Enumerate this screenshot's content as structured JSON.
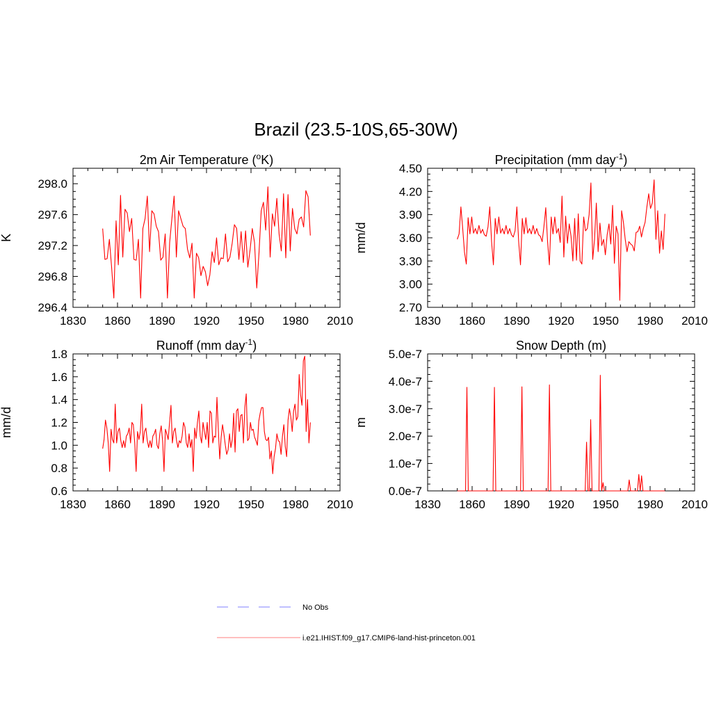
{
  "page_title": "Brazil (23.5-10S,65-30W)",
  "colors": {
    "model": "#ff0000",
    "obs": "#9999ff",
    "axis": "#000000"
  },
  "legend": [
    {
      "label": "No Obs",
      "style": "dashed",
      "color": "#9999ff"
    },
    {
      "label": "i.e21.IHIST.f09_g17.CMIP6-land-hist-princeton.001",
      "style": "solid",
      "color": "#ff9999"
    }
  ],
  "chart_data": [
    {
      "type": "line",
      "title": "2m Air Temperature (",
      "title_sup": "o",
      "title_after": "K)",
      "ylabel": "K",
      "xlim": [
        1830,
        2010
      ],
      "ylim": [
        296.4,
        298.2
      ],
      "x_ticks": [
        1830,
        1860,
        1890,
        1920,
        1950,
        1980,
        2010
      ],
      "y_ticks": [
        296.4,
        296.8,
        297.2,
        297.6,
        298.0
      ],
      "y_tick_labels": [
        "296.4",
        "296.8",
        "297.2",
        "297.6",
        "298.0"
      ],
      "x_start": 1850,
      "series": [
        {
          "values": [
            297.42,
            297.02,
            297.03,
            297.28,
            296.92,
            296.52,
            297.52,
            296.95,
            297.85,
            297.05,
            297.67,
            297.62,
            297.38,
            297.55,
            297.02,
            297.01,
            297.28,
            296.52,
            297.42,
            297.55,
            297.84,
            297.12,
            297.65,
            297.61,
            297.45,
            297.38,
            297.01,
            297.05,
            297.35,
            296.52,
            297.24,
            297.55,
            297.84,
            297.05,
            297.65,
            297.55,
            297.45,
            297.42,
            297.15,
            297.04,
            297.23,
            296.52,
            297.1,
            297.04,
            296.81,
            296.93,
            296.86,
            296.68,
            296.82,
            297.12,
            296.98,
            297.3,
            296.95,
            297.04,
            297.03,
            297.35,
            296.99,
            297.05,
            297.23,
            297.47,
            297.42,
            297.02,
            297.38,
            296.98,
            297.39,
            296.92,
            297.14,
            297.42,
            297.24,
            296.65,
            297.1,
            297.65,
            297.76,
            297.4,
            297.96,
            297.05,
            297.61,
            297.45,
            297.81,
            297.35,
            297.13,
            297.87,
            297.04,
            297.86,
            297.13,
            297.68,
            297.42,
            297.35,
            297.54,
            297.57,
            297.44,
            297.91,
            297.83,
            297.33
          ]
        }
      ]
    },
    {
      "type": "line",
      "title": "Precipitation (mm day",
      "title_sup": "-1",
      "title_after": ")",
      "ylabel": "mm/d",
      "xlim": [
        1830,
        2010
      ],
      "ylim": [
        2.7,
        4.5
      ],
      "x_ticks": [
        1830,
        1860,
        1890,
        1920,
        1950,
        1980,
        2010
      ],
      "y_ticks": [
        2.7,
        3.0,
        3.3,
        3.6,
        3.9,
        4.2,
        4.5
      ],
      "y_tick_labels": [
        "2.70",
        "3.00",
        "3.30",
        "3.60",
        "3.90",
        "4.20",
        "4.50"
      ],
      "x_start": 1850,
      "series": [
        {
          "values": [
            3.58,
            3.65,
            4.0,
            3.72,
            3.41,
            3.26,
            3.86,
            3.65,
            3.87,
            3.66,
            3.72,
            3.65,
            3.76,
            3.66,
            3.71,
            3.64,
            3.62,
            3.74,
            4.0,
            3.55,
            3.25,
            3.85,
            3.65,
            3.87,
            3.66,
            3.72,
            3.65,
            3.76,
            3.65,
            3.72,
            3.64,
            3.61,
            3.69,
            4.0,
            3.55,
            3.25,
            3.85,
            3.65,
            3.86,
            3.66,
            3.72,
            3.65,
            3.76,
            3.65,
            3.72,
            3.64,
            3.62,
            3.55,
            3.75,
            3.99,
            3.55,
            3.25,
            3.87,
            3.65,
            3.87,
            3.66,
            3.72,
            3.54,
            4.14,
            3.35,
            3.88,
            3.53,
            3.78,
            3.62,
            3.3,
            3.85,
            3.31,
            3.91,
            3.3,
            3.26,
            3.87,
            3.69,
            3.72,
            3.9,
            4.31,
            3.32,
            3.58,
            4.05,
            3.42,
            3.79,
            3.5,
            3.58,
            3.38,
            3.64,
            3.78,
            3.52,
            4.02,
            3.27,
            3.75,
            3.65,
            2.79,
            3.95,
            3.8,
            3.58,
            3.42,
            3.55,
            3.52,
            3.5,
            3.43,
            3.67,
            3.68,
            3.75,
            3.61,
            3.72,
            3.8,
            4.0,
            4.17,
            3.98,
            4.05,
            4.35,
            3.58,
            3.95,
            3.4,
            3.69,
            3.45,
            3.91
          ]
        }
      ]
    },
    {
      "type": "line",
      "title": "Runoff (mm day",
      "title_sup": "-1",
      "title_after": ")",
      "ylabel": "mm/d",
      "xlim": [
        1830,
        2010
      ],
      "ylim": [
        0.6,
        1.8
      ],
      "x_ticks": [
        1830,
        1860,
        1890,
        1920,
        1950,
        1980,
        2010
      ],
      "y_ticks": [
        0.6,
        0.8,
        1.0,
        1.2,
        1.4,
        1.6,
        1.8
      ],
      "y_tick_labels": [
        "0.6",
        "0.8",
        "1.0",
        "1.2",
        "1.4",
        "1.6",
        "1.8"
      ],
      "x_start": 1850,
      "series": [
        {
          "values": [
            0.97,
            1.05,
            1.22,
            1.15,
            1.02,
            0.77,
            1.14,
            1.05,
            1.02,
            1.36,
            1.02,
            1.12,
            1.15,
            1.04,
            0.98,
            1.04,
            0.98,
            1.08,
            1.1,
            1.15,
            1.02,
            1.2,
            1.18,
            1.02,
            0.77,
            1.12,
            1.05,
            1.12,
            1.36,
            1.02,
            1.12,
            1.15,
            1.04,
            0.98,
            1.04,
            0.98,
            1.08,
            1.1,
            1.14,
            1.0,
            0.97,
            1.1,
            1.17,
            1.04,
            0.77,
            1.14,
            1.1,
            1.05,
            1.2,
            1.35,
            1.02,
            1.12,
            1.15,
            1.04,
            0.98,
            1.04,
            1.02,
            1.08,
            1.2,
            1.16,
            1.02,
            0.98,
            1.1,
            0.98,
            1.05,
            0.77,
            1.15,
            1.06,
            1.2,
            1.3,
            1.08,
            1.02,
            1.2,
            1.12,
            1.05,
            1.2,
            0.98,
            1.3,
            1.28,
            1.02,
            1.08,
            1.07,
            1.42,
            1.13,
            0.88,
            1.07,
            1.18,
            1.1,
            1.0,
            0.92,
            0.96,
            1.1,
            0.98,
            1.05,
            1.28,
            0.94,
            1.3,
            1.32,
            1.12,
            1.26,
            1.27,
            1.02,
            1.33,
            1.45,
            1.04,
            1.06,
            1.2,
            1.13,
            1.14,
            1.07,
            1.04,
            1.0,
            1.21,
            1.28,
            1.33,
            1.33,
            1.12,
            1.05,
            1.04,
            1.07,
            0.88,
            0.95,
            0.75,
            0.9,
            0.97,
            1.1,
            1.04,
            1.03,
            0.92,
            1.08,
            1.18,
            0.99,
            0.9,
            1.22,
            1.32,
            1.25,
            1.12,
            1.3,
            1.36,
            1.22,
            1.25,
            1.62,
            1.44,
            1.35,
            1.74,
            1.78,
            1.12,
            1.4,
            1.02,
            1.2
          ]
        }
      ]
    },
    {
      "type": "line",
      "title": "Snow Depth (m)",
      "title_sup": "",
      "title_after": "",
      "ylabel": "m",
      "xlim": [
        1830,
        2010
      ],
      "ylim": [
        0,
        5e-07
      ],
      "x_ticks": [
        1830,
        1860,
        1890,
        1920,
        1950,
        1980,
        2010
      ],
      "y_ticks": [
        0,
        1e-07,
        2e-07,
        3e-07,
        4e-07,
        5e-07
      ],
      "y_tick_labels": [
        "0.0e-7",
        "1.0e-7",
        "2.0e-7",
        "3.0e-7",
        "4.0e-7",
        "5.0e-7"
      ],
      "x_start": 1850,
      "series": [
        {
          "values": [
            0,
            0,
            0,
            0,
            0,
            0,
            0,
            3.78e-07,
            0,
            0,
            0,
            0,
            0,
            0,
            0,
            0,
            0,
            0,
            0,
            0,
            0,
            0,
            0,
            0,
            0,
            0,
            0,
            3.78e-07,
            0,
            0,
            0,
            0,
            0,
            0,
            0,
            0,
            0,
            0,
            0,
            0,
            0,
            0,
            0,
            0,
            0,
            0,
            0,
            3.8e-07,
            0,
            0,
            0,
            0,
            0,
            0,
            0,
            0,
            0,
            0,
            0,
            0,
            0,
            0,
            0,
            0,
            0,
            0,
            0,
            3.87e-07,
            0,
            0,
            0,
            0,
            0,
            0,
            0,
            0,
            0,
            0,
            0,
            0,
            0,
            0,
            0,
            0,
            0,
            0,
            0,
            0,
            0,
            0,
            0,
            0,
            0,
            0,
            1.78e-07,
            0,
            0,
            2.6e-07,
            0,
            0,
            0,
            0,
            0,
            0,
            4.22e-07,
            0,
            3e-08,
            0,
            0,
            0,
            0,
            0,
            0,
            0,
            0,
            0,
            0,
            0,
            0,
            0,
            0,
            0,
            0,
            0,
            0,
            4e-08,
            0,
            0,
            0,
            0,
            0,
            0,
            6e-08,
            0,
            5.5e-08,
            0,
            0,
            0,
            0,
            0,
            0,
            0,
            0,
            0,
            0,
            0,
            0,
            0,
            0,
            0,
            0,
            0
          ]
        }
      ]
    }
  ]
}
